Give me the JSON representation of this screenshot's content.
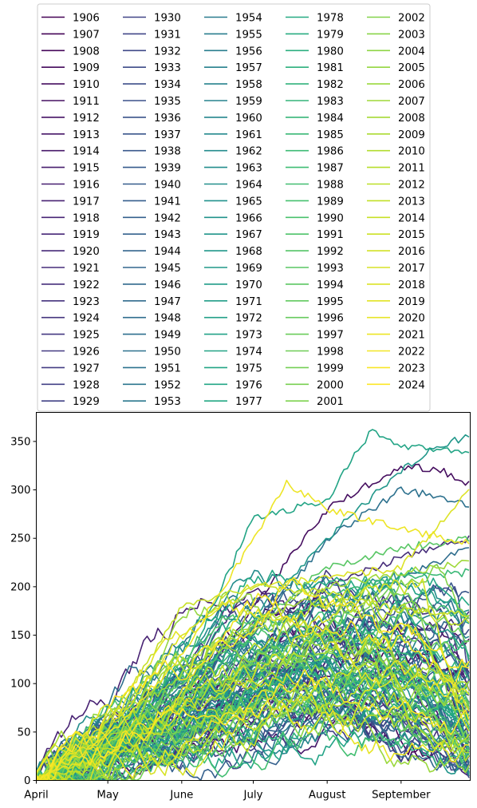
{
  "chart_data": {
    "type": "line",
    "title": "",
    "xlabel": "",
    "ylabel": "",
    "x_ticks": [
      "April",
      "May",
      "June",
      "July",
      "August",
      "September"
    ],
    "x_tick_days": [
      0,
      30,
      61,
      91,
      122,
      153
    ],
    "x_range_days": [
      0,
      182
    ],
    "ylim": [
      0,
      380
    ],
    "y_ticks": [
      0,
      50,
      100,
      150,
      200,
      250,
      300,
      350
    ],
    "grid": false,
    "legend_placement": "top",
    "legend_columns": 5,
    "colormap": "viridis",
    "series_count": 119,
    "series_names": [
      "1906",
      "1907",
      "1908",
      "1909",
      "1910",
      "1911",
      "1912",
      "1913",
      "1914",
      "1915",
      "1916",
      "1917",
      "1918",
      "1919",
      "1920",
      "1921",
      "1922",
      "1923",
      "1924",
      "1925",
      "1926",
      "1927",
      "1928",
      "1929",
      "1930",
      "1931",
      "1932",
      "1933",
      "1934",
      "1935",
      "1936",
      "1937",
      "1938",
      "1939",
      "1940",
      "1941",
      "1942",
      "1943",
      "1944",
      "1945",
      "1946",
      "1947",
      "1948",
      "1949",
      "1950",
      "1951",
      "1952",
      "1953",
      "1954",
      "1955",
      "1956",
      "1957",
      "1958",
      "1959",
      "1960",
      "1961",
      "1962",
      "1963",
      "1964",
      "1965",
      "1966",
      "1967",
      "1968",
      "1969",
      "1970",
      "1971",
      "1972",
      "1973",
      "1974",
      "1975",
      "1976",
      "1977",
      "1978",
      "1979",
      "1980",
      "1981",
      "1982",
      "1983",
      "1984",
      "1985",
      "1986",
      "1987",
      "1988",
      "1989",
      "1990",
      "1991",
      "1992",
      "1993",
      "1994",
      "1995",
      "1996",
      "1997",
      "1998",
      "1999",
      "2000",
      "2001",
      "2002",
      "2003",
      "2004",
      "2005",
      "2006",
      "2007",
      "2008",
      "2009",
      "2010",
      "2011",
      "2012",
      "2013",
      "2014",
      "2015",
      "2016",
      "2017",
      "2018",
      "2019",
      "2020",
      "2021",
      "2022",
      "2023",
      "2024"
    ],
    "highlight_series": [
      {
        "name": "1975",
        "points": [
          [
            0,
            0
          ],
          [
            30,
            40
          ],
          [
            61,
            110
          ],
          [
            91,
            270
          ],
          [
            122,
            290
          ],
          [
            140,
            360
          ],
          [
            153,
            345
          ],
          [
            182,
            340
          ]
        ]
      },
      {
        "name": "1968",
        "points": [
          [
            0,
            0
          ],
          [
            30,
            30
          ],
          [
            61,
            90
          ],
          [
            91,
            170
          ],
          [
            122,
            250
          ],
          [
            153,
            320
          ],
          [
            168,
            345
          ],
          [
            182,
            355
          ]
        ]
      },
      {
        "name": "1910",
        "points": [
          [
            0,
            0
          ],
          [
            30,
            25
          ],
          [
            61,
            70
          ],
          [
            91,
            180
          ],
          [
            122,
            280
          ],
          [
            153,
            325
          ],
          [
            170,
            320
          ],
          [
            182,
            305
          ]
        ]
      },
      {
        "name": "1950",
        "points": [
          [
            0,
            0
          ],
          [
            30,
            20
          ],
          [
            61,
            60
          ],
          [
            91,
            150
          ],
          [
            122,
            250
          ],
          [
            153,
            300
          ],
          [
            175,
            290
          ],
          [
            182,
            280
          ]
        ]
      },
      {
        "name": "2021",
        "points": [
          [
            0,
            0
          ],
          [
            30,
            45
          ],
          [
            61,
            130
          ],
          [
            91,
            250
          ],
          [
            105,
            308
          ],
          [
            122,
            280
          ],
          [
            153,
            260
          ],
          [
            182,
            245
          ]
        ]
      },
      {
        "name": "2018",
        "points": [
          [
            0,
            0
          ],
          [
            30,
            50
          ],
          [
            61,
            150
          ],
          [
            91,
            200
          ],
          [
            122,
            210
          ],
          [
            153,
            220
          ],
          [
            182,
            300
          ]
        ]
      },
      {
        "name": "1993",
        "points": [
          [
            0,
            0
          ],
          [
            30,
            35
          ],
          [
            61,
            100
          ],
          [
            91,
            160
          ],
          [
            122,
            220
          ],
          [
            153,
            240
          ],
          [
            182,
            250
          ]
        ]
      },
      {
        "name": "2014",
        "points": [
          [
            0,
            0
          ],
          [
            30,
            60
          ],
          [
            61,
            178
          ],
          [
            91,
            200
          ],
          [
            122,
            195
          ],
          [
            153,
            175
          ],
          [
            182,
            170
          ]
        ]
      },
      {
        "name": "1921",
        "points": [
          [
            0,
            0
          ],
          [
            30,
            25
          ],
          [
            61,
            55
          ],
          [
            91,
            120
          ],
          [
            122,
            200
          ],
          [
            153,
            230
          ],
          [
            182,
            250
          ]
        ]
      },
      {
        "name": "1948",
        "points": [
          [
            0,
            0
          ],
          [
            30,
            20
          ],
          [
            61,
            60
          ],
          [
            91,
            120
          ],
          [
            122,
            170
          ],
          [
            153,
            210
          ],
          [
            182,
            240
          ]
        ]
      },
      {
        "name": "1985",
        "points": [
          [
            0,
            0
          ],
          [
            30,
            30
          ],
          [
            61,
            80
          ],
          [
            91,
            150
          ],
          [
            122,
            190
          ],
          [
            153,
            210
          ],
          [
            182,
            215
          ]
        ]
      },
      {
        "name": "2007",
        "points": [
          [
            0,
            0
          ],
          [
            30,
            50
          ],
          [
            61,
            110
          ],
          [
            91,
            160
          ],
          [
            122,
            200
          ],
          [
            153,
            215
          ],
          [
            182,
            225
          ]
        ]
      }
    ]
  }
}
